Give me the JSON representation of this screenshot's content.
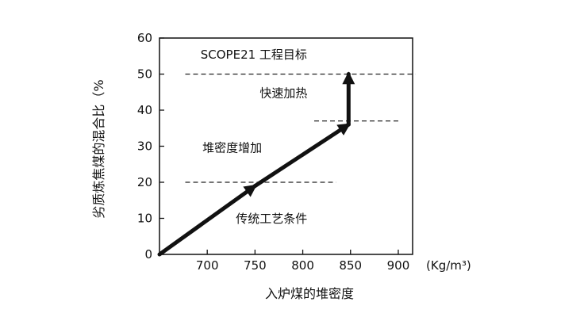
{
  "chart_data": {
    "type": "line",
    "title": "",
    "xlabel": "入炉煤的堆密度",
    "x_unit": "(Kg/m³)",
    "ylabel": "劣质炼焦煤的混合比（%",
    "xlim": [
      650,
      915
    ],
    "ylim": [
      0,
      60
    ],
    "x_ticks": [
      "700",
      "750",
      "800",
      "850",
      "900"
    ],
    "y_ticks": [
      "0",
      "10",
      "20",
      "30",
      "40",
      "50",
      "60"
    ],
    "grid": false,
    "series": [
      {
        "x": [
          650,
          750
        ],
        "y": [
          0,
          19
        ]
      },
      {
        "x": [
          750,
          848
        ],
        "y": [
          19,
          36
        ]
      },
      {
        "x": [
          848,
          848
        ],
        "y": [
          36,
          50
        ]
      }
    ],
    "reference_lines": [
      {
        "y": 50,
        "x": [
          677,
          918
        ]
      },
      {
        "y": 37,
        "x": [
          812,
          900
        ]
      },
      {
        "y": 20,
        "x": [
          677,
          835
        ]
      }
    ],
    "annotations": [
      {
        "text": "SCOPE21 工程目标",
        "x": 693,
        "y": 54.3
      },
      {
        "text": "快速加热",
        "x": 755,
        "y": 43.6
      },
      {
        "text": "堆密度增加",
        "x": 695,
        "y": 28.5
      },
      {
        "text": "传统工艺条件",
        "x": 730,
        "y": 8.8
      }
    ]
  }
}
